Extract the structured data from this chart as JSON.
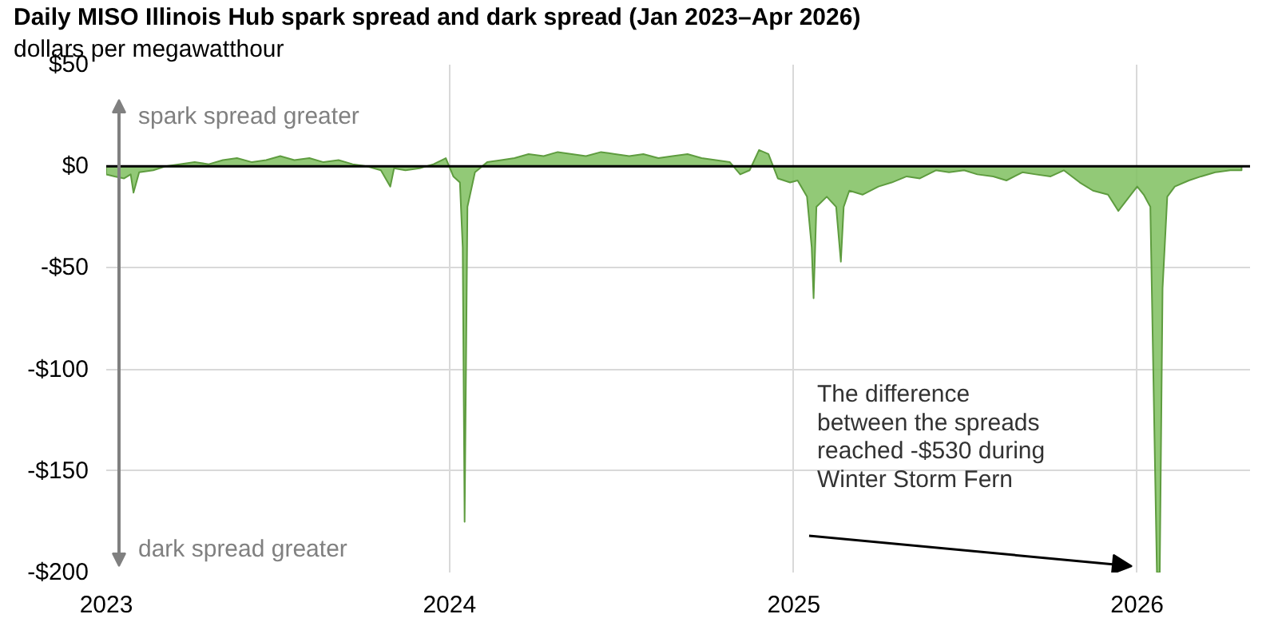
{
  "chart_data": {
    "type": "area",
    "title": "Daily MISO Illinois Hub spark spread and dark spread (Jan 2023–Apr 2026)",
    "subtitle": "dollars per megawatthour",
    "x": [
      "2023-01-01",
      "2023-01-10",
      "2023-01-20",
      "2023-01-27",
      "2023-01-30",
      "2023-02-05",
      "2023-02-20",
      "2023-03-05",
      "2023-03-20",
      "2023-04-05",
      "2023-04-20",
      "2023-05-05",
      "2023-05-20",
      "2023-06-05",
      "2023-06-20",
      "2023-07-05",
      "2023-07-20",
      "2023-08-05",
      "2023-08-20",
      "2023-09-05",
      "2023-09-20",
      "2023-10-05",
      "2023-10-20",
      "2023-10-30",
      "2023-11-03",
      "2023-11-15",
      "2023-11-30",
      "2023-12-15",
      "2023-12-28",
      "2024-01-05",
      "2024-01-12",
      "2024-01-15",
      "2024-01-17",
      "2024-01-20",
      "2024-01-28",
      "2024-02-10",
      "2024-02-25",
      "2024-03-10",
      "2024-03-25",
      "2024-04-10",
      "2024-04-25",
      "2024-05-10",
      "2024-05-25",
      "2024-06-10",
      "2024-06-25",
      "2024-07-10",
      "2024-07-25",
      "2024-08-10",
      "2024-08-25",
      "2024-09-10",
      "2024-09-25",
      "2024-10-10",
      "2024-10-25",
      "2024-11-05",
      "2024-11-15",
      "2024-11-25",
      "2024-12-05",
      "2024-12-15",
      "2024-12-28",
      "2025-01-05",
      "2025-01-15",
      "2025-01-20",
      "2025-01-22",
      "2025-01-25",
      "2025-02-05",
      "2025-02-15",
      "2025-02-20",
      "2025-02-23",
      "2025-03-01",
      "2025-03-15",
      "2025-04-01",
      "2025-04-15",
      "2025-05-01",
      "2025-05-15",
      "2025-06-01",
      "2025-06-15",
      "2025-07-01",
      "2025-07-15",
      "2025-08-01",
      "2025-08-15",
      "2025-09-01",
      "2025-09-15",
      "2025-10-01",
      "2025-10-15",
      "2025-11-01",
      "2025-11-15",
      "2025-12-01",
      "2025-12-12",
      "2025-12-22",
      "2026-01-01",
      "2026-01-08",
      "2026-01-15",
      "2026-01-22",
      "2026-01-25",
      "2026-01-28",
      "2026-02-02",
      "2026-02-10",
      "2026-02-25",
      "2026-03-10",
      "2026-03-25",
      "2026-04-10",
      "2026-04-22"
    ],
    "values": [
      -4,
      -5,
      -6,
      -4,
      -13,
      -3,
      -2,
      0,
      1,
      2,
      1,
      3,
      4,
      2,
      3,
      5,
      3,
      4,
      2,
      3,
      1,
      0,
      -2,
      -10,
      -1,
      -2,
      -1,
      1,
      4,
      -5,
      -8,
      -40,
      -175,
      -20,
      -3,
      2,
      3,
      4,
      6,
      5,
      7,
      6,
      5,
      7,
      6,
      5,
      6,
      4,
      5,
      6,
      4,
      3,
      2,
      -4,
      -2,
      8,
      6,
      -6,
      -8,
      -7,
      -15,
      -40,
      -65,
      -20,
      -15,
      -20,
      -47,
      -20,
      -12,
      -14,
      -10,
      -8,
      -5,
      -6,
      -2,
      -3,
      -2,
      -4,
      -5,
      -7,
      -3,
      -4,
      -5,
      -2,
      -8,
      -12,
      -14,
      -22,
      -16,
      -10,
      -14,
      -20,
      -200,
      -200,
      -60,
      -15,
      -10,
      -7,
      -5,
      -3,
      -2,
      -2
    ],
    "color": "#7fbf5f",
    "xlim": [
      "2023-01-01",
      "2026-05-01"
    ],
    "ylim": [
      -200,
      50
    ],
    "xticks": [
      {
        "value": "2023-01-01",
        "label": "2023"
      },
      {
        "value": "2024-01-01",
        "label": "2024"
      },
      {
        "value": "2025-01-01",
        "label": "2025"
      },
      {
        "value": "2026-01-01",
        "label": "2026"
      }
    ],
    "yticks": [
      {
        "value": 50,
        "label": "$50"
      },
      {
        "value": 0,
        "label": "$0"
      },
      {
        "value": -50,
        "label": "-$50"
      },
      {
        "value": -100,
        "label": "-$100"
      },
      {
        "value": -150,
        "label": "-$150"
      },
      {
        "value": -200,
        "label": "-$200"
      }
    ],
    "grid": true,
    "ref_lines": [
      {
        "axis": "y",
        "value": 0,
        "color": "#000000"
      }
    ],
    "annotations": [
      "spark spread greater",
      "dark spread greater",
      "The difference\nbetween the spreads\nreached -$530 during\nWinter Storm Fern"
    ]
  }
}
